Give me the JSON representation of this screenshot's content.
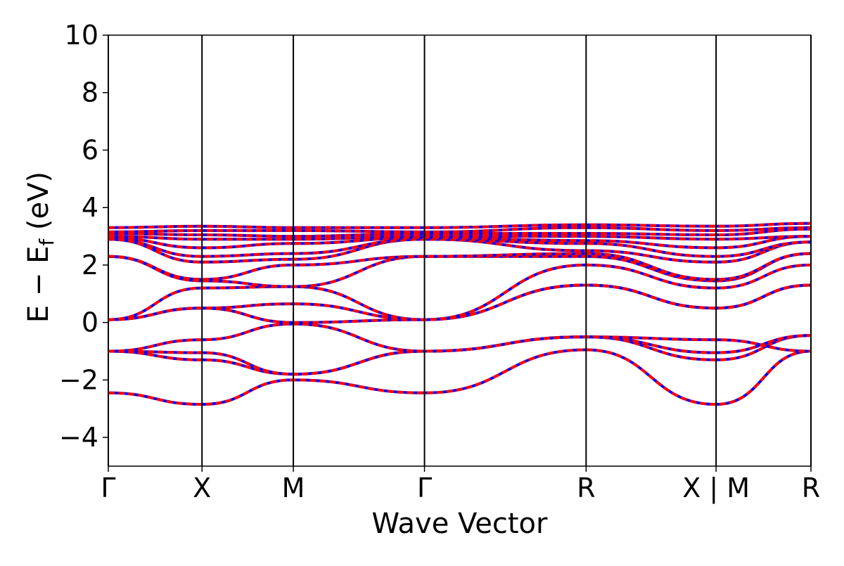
{
  "chart_data": {
    "type": "line",
    "xlabel": "Wave Vector",
    "ylabel": "E − E",
    "ylabel_sub": "f",
    "ylabel_unit": " (eV)",
    "ylim": [
      -5,
      10
    ],
    "yticks": [
      -4,
      -2,
      0,
      2,
      4,
      6,
      8,
      10
    ],
    "ytick_labels": [
      "−4",
      "−2",
      "0",
      "2",
      "4",
      "6",
      "8",
      "10"
    ],
    "xlim": [
      0,
      6
    ],
    "high_symmetry_points": [
      {
        "x": 0,
        "label": "Γ"
      },
      {
        "x": 0.8,
        "label": "X"
      },
      {
        "x": 1.58,
        "label": "M"
      },
      {
        "x": 2.7,
        "label": "Γ"
      },
      {
        "x": 4.08,
        "label": "R"
      },
      {
        "x": 5.19,
        "label": "X | M"
      },
      {
        "x": 6,
        "label": "R"
      }
    ],
    "grid": false,
    "legend": "none",
    "series_colors": {
      "spin_up": "#0000ff",
      "spin_down": "#ff0000"
    },
    "x_sample": [
      0,
      0.8,
      1.58,
      2.7,
      4.08,
      5.19,
      6
    ],
    "bands": [
      [
        -2.45,
        -2.85,
        -2.0,
        -2.45,
        -0.95,
        -2.85,
        -1.0
      ],
      [
        -1.0,
        -1.3,
        -1.8,
        -1.0,
        -0.5,
        -1.3,
        -0.45
      ],
      [
        -1.0,
        -1.05,
        -1.8,
        -1.0,
        -0.5,
        -1.05,
        -0.45
      ],
      [
        -1.0,
        -0.6,
        -0.05,
        -1.0,
        -0.5,
        -0.6,
        -1.0
      ],
      [
        0.1,
        0.5,
        0.0,
        0.1,
        1.3,
        0.5,
        1.3
      ],
      [
        0.1,
        0.5,
        0.65,
        0.1,
        1.3,
        0.5,
        1.3
      ],
      [
        0.1,
        1.2,
        1.25,
        0.1,
        2.0,
        1.2,
        2.0
      ],
      [
        2.3,
        1.45,
        1.25,
        2.3,
        2.3,
        1.45,
        2.4
      ],
      [
        2.3,
        1.5,
        2.0,
        2.3,
        2.4,
        1.5,
        2.4
      ],
      [
        2.9,
        2.1,
        2.2,
        2.9,
        2.5,
        2.1,
        2.8
      ],
      [
        2.9,
        2.3,
        2.4,
        2.9,
        2.75,
        2.3,
        2.8
      ],
      [
        2.95,
        2.6,
        2.75,
        2.95,
        2.85,
        2.6,
        3.0
      ],
      [
        3.0,
        2.9,
        2.9,
        3.0,
        3.0,
        2.9,
        3.0
      ],
      [
        3.1,
        3.05,
        3.0,
        3.1,
        3.1,
        3.05,
        3.25
      ],
      [
        3.15,
        3.2,
        3.2,
        3.15,
        3.3,
        3.2,
        3.3
      ],
      [
        3.3,
        3.35,
        3.3,
        3.3,
        3.4,
        3.35,
        3.45
      ]
    ]
  }
}
